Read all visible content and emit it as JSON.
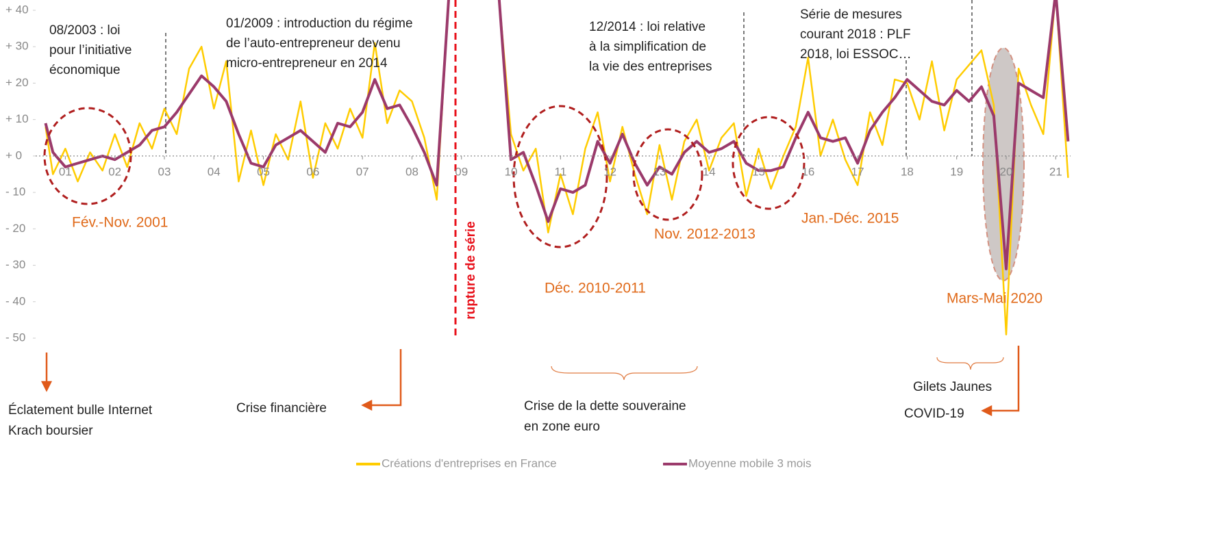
{
  "chart_data": {
    "type": "line",
    "x": [
      2000.6,
      2000.75,
      2001.0,
      2001.25,
      2001.5,
      2001.75,
      2002.0,
      2002.25,
      2002.5,
      2002.75,
      2003.0,
      2003.25,
      2003.5,
      2003.75,
      2004.0,
      2004.25,
      2004.5,
      2004.75,
      2005.0,
      2005.25,
      2005.5,
      2005.75,
      2006.0,
      2006.25,
      2006.5,
      2006.75,
      2007.0,
      2007.25,
      2007.5,
      2007.75,
      2008.0,
      2008.25,
      2008.5,
      2008.75,
      2009.0,
      2009.25,
      2009.5,
      2009.75,
      2010.0,
      2010.25,
      2010.5,
      2010.75,
      2011.0,
      2011.25,
      2011.5,
      2011.75,
      2012.0,
      2012.25,
      2012.5,
      2012.75,
      2013.0,
      2013.25,
      2013.5,
      2013.75,
      2014.0,
      2014.25,
      2014.5,
      2014.75,
      2015.0,
      2015.25,
      2015.5,
      2015.75,
      2016.0,
      2016.25,
      2016.5,
      2016.75,
      2017.0,
      2017.25,
      2017.5,
      2017.75,
      2018.0,
      2018.25,
      2018.5,
      2018.75,
      2019.0,
      2019.25,
      2019.5,
      2019.75,
      2020.0,
      2020.25,
      2020.5,
      2020.75,
      2021.0,
      2021.25
    ],
    "series": [
      {
        "name": "Créations d'entreprises en France",
        "color": "#ffcc00",
        "values": [
          8,
          -5,
          2,
          -7,
          1,
          -4,
          6,
          -3,
          9,
          2,
          13,
          6,
          24,
          30,
          13,
          26,
          -7,
          7,
          -8,
          6,
          -1,
          15,
          -6,
          9,
          2,
          13,
          5,
          31,
          9,
          18,
          15,
          5,
          -12,
          45,
          null,
          null,
          null,
          45,
          6,
          -4,
          2,
          -21,
          -5,
          -16,
          2,
          12,
          -7,
          8,
          -5,
          -16,
          3,
          -12,
          4,
          10,
          -4,
          5,
          9,
          -11,
          2,
          -9,
          0,
          8,
          27,
          0,
          10,
          -1,
          -8,
          12,
          3,
          21,
          20,
          10,
          26,
          7,
          21,
          25,
          29,
          14,
          -49,
          24,
          14,
          6,
          45,
          -6
        ]
      },
      {
        "name": "Moyenne mobile 3 mois",
        "color": "#9b3a6b",
        "values": [
          9,
          1,
          -3,
          -2,
          -1,
          0,
          -1,
          1,
          3,
          7,
          8,
          12,
          17,
          22,
          19,
          15,
          6,
          -2,
          -3,
          3,
          5,
          7,
          4,
          1,
          9,
          8,
          12,
          21,
          13,
          14,
          8,
          1,
          -8,
          45,
          null,
          null,
          null,
          45,
          -1,
          1,
          -8,
          -18,
          -9,
          -10,
          -8,
          4,
          -2,
          6,
          -2,
          -8,
          -3,
          -5,
          1,
          4,
          1,
          2,
          4,
          -2,
          -4,
          -4,
          -3,
          5,
          12,
          5,
          4,
          5,
          -2,
          7,
          12,
          16,
          21,
          18,
          15,
          14,
          18,
          15,
          19,
          11,
          -31,
          20,
          18,
          16,
          45,
          4
        ]
      }
    ],
    "xlim": [
      2000.4,
      2021.3
    ],
    "xticks": [
      {
        "value": 2001,
        "label": "01"
      },
      {
        "value": 2002,
        "label": "02"
      },
      {
        "value": 2003,
        "label": "03"
      },
      {
        "value": 2004,
        "label": "04"
      },
      {
        "value": 2005,
        "label": "05"
      },
      {
        "value": 2006,
        "label": "06"
      },
      {
        "value": 2007,
        "label": "07"
      },
      {
        "value": 2008,
        "label": "08"
      },
      {
        "value": 2009,
        "label": "09"
      },
      {
        "value": 2010,
        "label": "10"
      },
      {
        "value": 2011,
        "label": "11"
      },
      {
        "value": 2012,
        "label": "12"
      },
      {
        "value": 2013,
        "label": "13"
      },
      {
        "value": 2014,
        "label": "14"
      },
      {
        "value": 2015,
        "label": "15"
      },
      {
        "value": 2016,
        "label": "16"
      },
      {
        "value": 2017,
        "label": "17"
      },
      {
        "value": 2018,
        "label": "18"
      },
      {
        "value": 2019,
        "label": "19"
      },
      {
        "value": 2020,
        "label": "20"
      },
      {
        "value": 2021,
        "label": "21"
      }
    ],
    "ylim": [
      -50,
      40
    ],
    "yticks": [
      {
        "value": 40,
        "label": "+ 40"
      },
      {
        "value": 30,
        "label": "+ 30"
      },
      {
        "value": 20,
        "label": "+ 20"
      },
      {
        "value": 10,
        "label": "+ 10"
      },
      {
        "value": 0,
        "label": "+ 0"
      },
      {
        "value": -10,
        "label": "- 10"
      },
      {
        "value": -20,
        "label": "- 20"
      },
      {
        "value": -30,
        "label": "- 30"
      },
      {
        "value": -40,
        "label": "- 40"
      },
      {
        "value": -50,
        "label": "- 50"
      }
    ],
    "legend": "bottom",
    "annotations": [
      [
        "08/2003 : loi",
        "pour l’initiative",
        "économique"
      ],
      [
        "01/2009 : introduction du régime",
        "de l’auto-entrepreneur devenu",
        "micro-entrepreneur en 2014"
      ],
      [
        "12/2014 : loi relative",
        "à la simplification de",
        "la vie des entreprises"
      ],
      [
        "Série de mesures",
        "courant 2018 : PLF",
        "2018, loi ESSOC…"
      ]
    ],
    "period_labels": [
      "Fév.-Nov. 2001",
      "Déc. 2010-2011",
      "Nov. 2012-2013",
      "Jan.-Déc. 2015",
      "Mars-Mai 2020"
    ],
    "rupture_label": "rupture de série",
    "events": [
      [
        "Éclatement bulle Internet",
        "Krach boursier"
      ],
      [
        "Crise financière"
      ],
      [
        "Crise de la dette souveraine",
        "en zone euro"
      ],
      [
        "Gilets Jaunes"
      ],
      [
        "COVID-19"
      ]
    ]
  }
}
